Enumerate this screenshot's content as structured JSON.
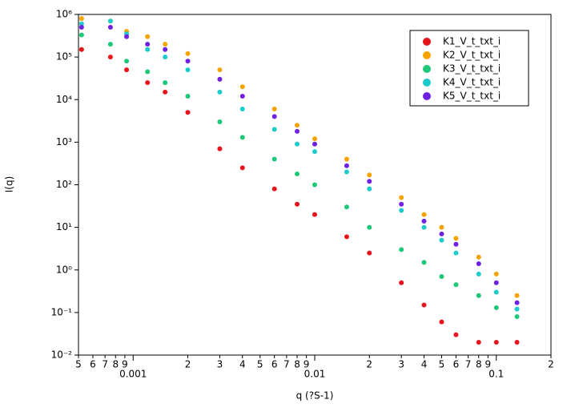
{
  "chart_data": {
    "type": "scatter",
    "xlabel": "q (?S-1)",
    "ylabel": "I(q)",
    "xlog": true,
    "ylog": true,
    "xlim": [
      0.0005,
      0.2
    ],
    "ylim": [
      0.01,
      1000000
    ],
    "xticks": [
      {
        "value": 0.0005,
        "label": "5"
      },
      {
        "value": 0.0006,
        "label": "6"
      },
      {
        "value": 0.0007,
        "label": "7"
      },
      {
        "value": 0.0008,
        "label": "8"
      },
      {
        "value": 0.0009,
        "label": "9"
      },
      0.001,
      {
        "value": 0.002,
        "label": "2"
      },
      {
        "value": 0.003,
        "label": "3"
      },
      {
        "value": 0.004,
        "label": "4"
      },
      {
        "value": 0.005,
        "label": "5"
      },
      {
        "value": 0.006,
        "label": "6"
      },
      {
        "value": 0.007,
        "label": "7"
      },
      {
        "value": 0.008,
        "label": "8"
      },
      {
        "value": 0.009,
        "label": "9"
      },
      0.01,
      {
        "value": 0.02,
        "label": "2"
      },
      {
        "value": 0.03,
        "label": "3"
      },
      {
        "value": 0.04,
        "label": "4"
      },
      {
        "value": 0.05,
        "label": "5"
      },
      {
        "value": 0.06,
        "label": "6"
      },
      {
        "value": 0.07,
        "label": "7"
      },
      {
        "value": 0.08,
        "label": "8"
      },
      {
        "value": 0.09,
        "label": "9"
      },
      0.1,
      {
        "value": 0.2,
        "label": "2"
      }
    ],
    "yticks": [
      {
        "value": 0.01,
        "label": "10⁻²"
      },
      {
        "value": 0.1,
        "label": "10⁻¹"
      },
      {
        "value": 1,
        "label": "10⁰"
      },
      {
        "value": 10,
        "label": "10¹"
      },
      {
        "value": 100,
        "label": "10²"
      },
      {
        "value": 1000,
        "label": "10³"
      },
      {
        "value": 10000,
        "label": "10⁴"
      },
      {
        "value": 100000,
        "label": "10⁵"
      },
      {
        "value": 1000000,
        "label": "10⁶"
      }
    ],
    "legend": "upper right",
    "x": [
      0.00052,
      0.00075,
      0.00092,
      0.0012,
      0.0015,
      0.002,
      0.003,
      0.004,
      0.006,
      0.008,
      0.01,
      0.015,
      0.02,
      0.03,
      0.04,
      0.05,
      0.06,
      0.08,
      0.1,
      0.13
    ],
    "series": [
      {
        "name": "K1_V_t_txt_i",
        "color": "#e8141c",
        "values": [
          150000,
          100000,
          50000,
          25000,
          15000,
          5000,
          700,
          250,
          80,
          35,
          20,
          6,
          2.5,
          0.5,
          0.15,
          0.06,
          0.03,
          0.02,
          0.02,
          0.02
        ]
      },
      {
        "name": "K2_V_t_txt_i",
        "color": "#f5a300",
        "values": [
          800000,
          700000,
          400000,
          300000,
          200000,
          120000,
          50000,
          20000,
          6000,
          2500,
          1200,
          400,
          170,
          50,
          20,
          10,
          5.5,
          2,
          0.8,
          0.25
        ]
      },
      {
        "name": "K3_V_t_txt_i",
        "color": "#1ec878",
        "values": [
          330000,
          200000,
          80000,
          45000,
          25000,
          12000,
          3000,
          1300,
          400,
          180,
          100,
          30,
          10,
          3,
          1.5,
          0.7,
          0.45,
          0.25,
          0.13,
          0.08
        ]
      },
      {
        "name": "K4_V_t_txt_i",
        "color": "#1ecbcb",
        "values": [
          600000,
          700000,
          350000,
          150000,
          100000,
          50000,
          15000,
          6000,
          2000,
          900,
          600,
          200,
          80,
          25,
          10,
          5,
          2.5,
          0.8,
          0.3,
          0.12
        ]
      },
      {
        "name": "K5_V_t_txt_i",
        "color": "#7020e0",
        "values": [
          500000,
          500000,
          300000,
          200000,
          150000,
          80000,
          30000,
          12000,
          4000,
          1800,
          900,
          280,
          120,
          35,
          14,
          7,
          4,
          1.4,
          0.5,
          0.17
        ]
      }
    ]
  }
}
